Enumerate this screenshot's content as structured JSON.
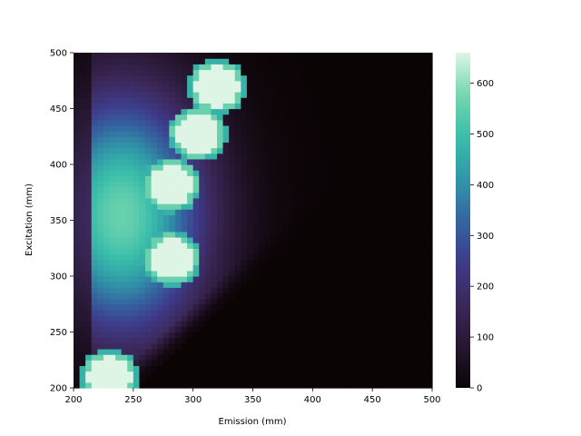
{
  "chart_data": {
    "type": "heatmap",
    "xlabel": "Emission (mm)",
    "ylabel": "Excitation (mm)",
    "xlim": [
      200,
      500
    ],
    "ylim": [
      200,
      500
    ],
    "x_ticks": [
      200,
      250,
      300,
      350,
      400,
      450,
      500
    ],
    "y_ticks": [
      200,
      250,
      300,
      350,
      400,
      450,
      500
    ],
    "grid_step": 5,
    "colorbar": {
      "range": [
        0,
        660
      ],
      "ticks": [
        0,
        100,
        200,
        300,
        400,
        500,
        600
      ],
      "colormap": "mako-like (black to mint)"
    },
    "background_peak": {
      "emission": 240,
      "excitation": 355,
      "value": 560
    },
    "hotspots": [
      {
        "emission": 230,
        "excitation": 210,
        "value": 660
      },
      {
        "emission": 282,
        "excitation": 316,
        "value": 660
      },
      {
        "emission": 282,
        "excitation": 382,
        "value": 660
      },
      {
        "emission": 304,
        "excitation": 428,
        "value": 660
      },
      {
        "emission": 320,
        "excitation": 470,
        "value": 660
      }
    ],
    "zero_region": "emission > excitation + 50"
  }
}
